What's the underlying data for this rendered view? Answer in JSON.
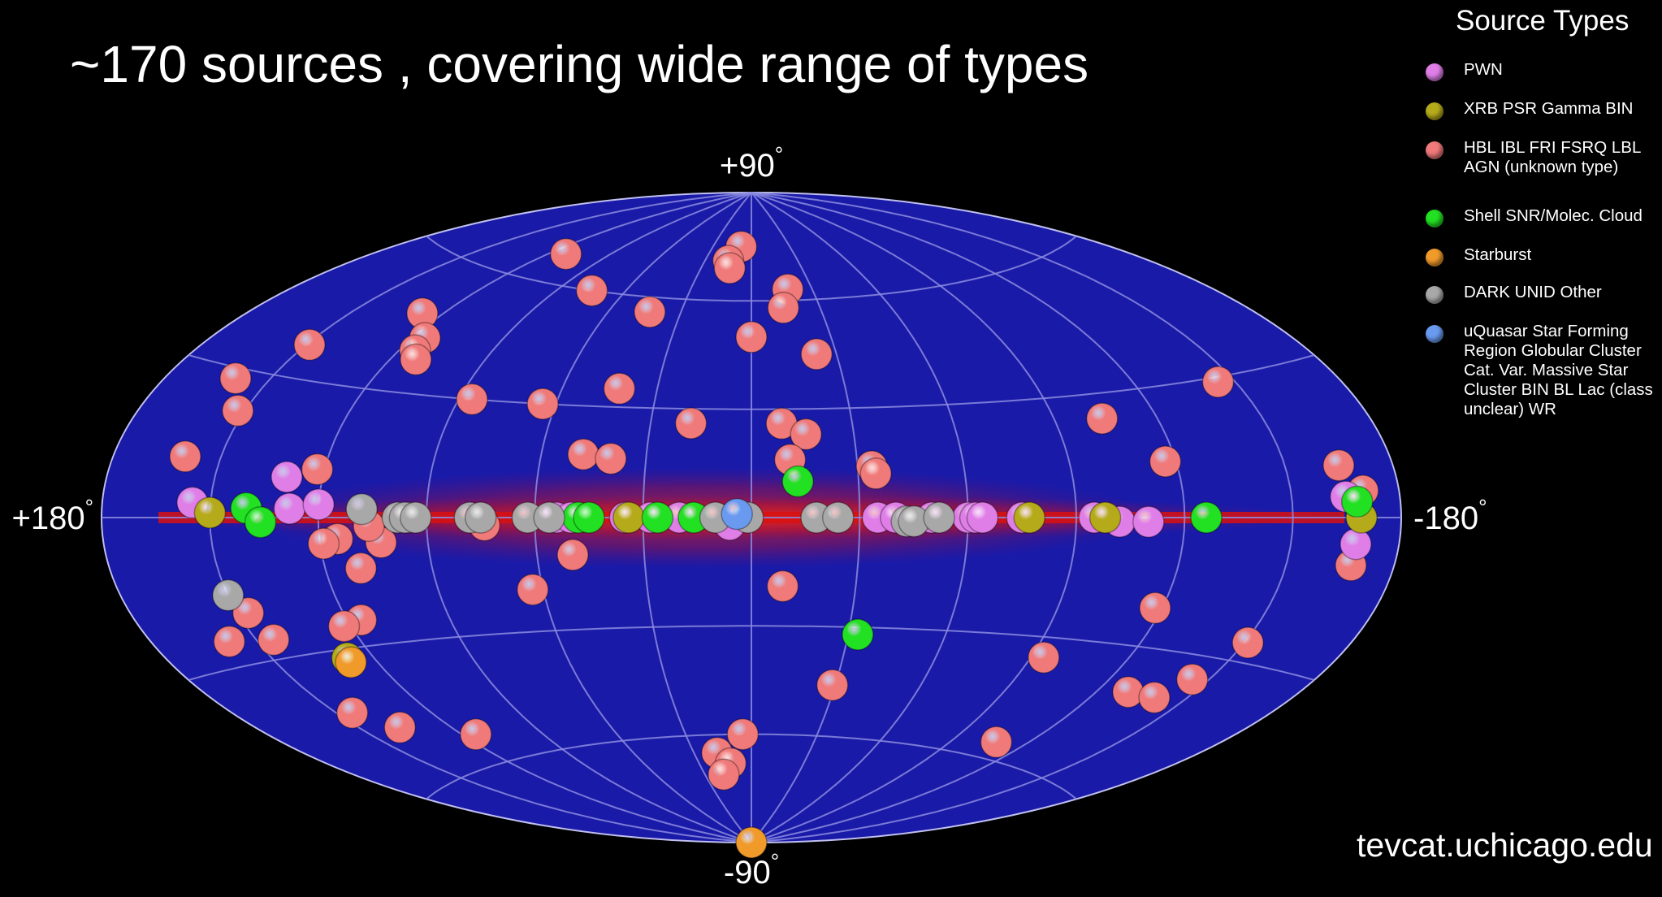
{
  "title": "~170 sources , covering wide range of types",
  "footer": "tevcat.uchicago.edu",
  "legend": {
    "title": "Source Types",
    "items": [
      {
        "label": "PWN",
        "color": "#e07ee8"
      },
      {
        "label": "XRB PSR Gamma BIN",
        "color": "#b5ab1a"
      },
      {
        "label": "HBL IBL FRI FSRQ LBL AGN (unknown type)",
        "color": "#f07a7a"
      },
      {
        "label": "Shell SNR/Molec. Cloud",
        "color": "#22e022"
      },
      {
        "label": "Starburst",
        "color": "#f09a2a"
      },
      {
        "label": "DARK UNID Other",
        "color": "#a8a8a8"
      },
      {
        "label": "uQuasar Star Forming Region Globular Cluster Cat. Var. Massive Star Cluster BIN BL Lac (class unclear) WR",
        "color": "#6a9af0"
      }
    ]
  },
  "chart_data": {
    "type": "scatter",
    "projection": "aitoff",
    "map_colors": {
      "background": "#1a1aa8",
      "galactic_plane": "#d81010",
      "grid": "#8c8ce0"
    },
    "axis_labels": {
      "top": "+90",
      "bottom": "-90",
      "left": "+180",
      "right": "-180",
      "degree_mark": "°"
    },
    "series": [
      {
        "color": "#f07a7a",
        "points": [
          [
            112,
            67
          ],
          [
            8,
            75
          ],
          [
            15,
            71
          ],
          [
            13,
            69
          ],
          [
            -18,
            63
          ],
          [
            -14,
            58
          ],
          [
            75,
            60
          ],
          [
            43,
            56
          ],
          [
            0,
            50
          ],
          [
            -23,
            45
          ],
          [
            127,
            48
          ],
          [
            116,
            43
          ],
          [
            115,
            40
          ],
          [
            112,
            38
          ],
          [
            149,
            37
          ],
          [
            160,
            28
          ],
          [
            152,
            22
          ],
          [
            42,
            35
          ],
          [
            86,
            30
          ],
          [
            64,
            30
          ],
          [
            18,
            26
          ],
          [
            -9,
            26
          ],
          [
            -16,
            23
          ],
          [
            -104,
            24
          ],
          [
            -145,
            29
          ],
          [
            48,
            17
          ],
          [
            40,
            16
          ],
          [
            -11,
            16
          ],
          [
            -34,
            14
          ],
          [
            -35,
            12
          ],
          [
            -117,
            13
          ],
          [
            160,
            12
          ],
          [
            122,
            11
          ],
          [
            -165,
            10
          ],
          [
            -170,
            5
          ],
          [
            74,
            -2
          ],
          [
            115,
            -5
          ],
          [
            119,
            -6
          ],
          [
            103,
            -6
          ],
          [
            50,
            -10
          ],
          [
            110,
            -12
          ],
          [
            116,
            -24
          ],
          [
            158,
            -25
          ],
          [
            147,
            -20
          ],
          [
            145,
            -26
          ],
          [
            122,
            -25
          ],
          [
            63,
            -19
          ],
          [
            -9,
            -19
          ],
          [
            -118,
            -21
          ],
          [
            -151,
            -26
          ],
          [
            -145,
            -35
          ],
          [
            -130,
            -40
          ],
          [
            145,
            -43
          ],
          [
            137,
            -48
          ],
          [
            -94,
            -35
          ],
          [
            115,
            -53
          ],
          [
            -108,
            -56
          ],
          [
            4,
            -60
          ],
          [
            18,
            -65
          ],
          [
            12,
            -68
          ],
          [
            18,
            -71
          ],
          [
            -29,
            -46
          ],
          [
            -140,
            -40
          ],
          [
            -168,
            -9
          ],
          [
            106,
            -2
          ]
        ]
      },
      {
        "color": "#e07ee8",
        "points": [
          [
            130,
            9
          ],
          [
            155,
            3
          ],
          [
            128,
            2
          ],
          [
            120,
            3
          ],
          [
            95,
            0
          ],
          [
            54,
            0
          ],
          [
            50,
            0
          ],
          [
            35,
            0
          ],
          [
            28,
            0
          ],
          [
            20,
            0
          ],
          [
            -35,
            0
          ],
          [
            -50,
            0
          ],
          [
            -40,
            0
          ],
          [
            -60,
            0
          ],
          [
            -62,
            0
          ],
          [
            -64,
            0
          ],
          [
            -95,
            0
          ],
          [
            -102,
            -1
          ],
          [
            -110,
            -1
          ],
          [
            -165,
            4
          ],
          [
            -168,
            -5
          ],
          [
            6,
            -2
          ],
          [
            -75,
            0
          ]
        ]
      },
      {
        "color": "#b5ab1a",
        "points": [
          [
            -169,
            0
          ],
          [
            -77,
            0
          ],
          [
            -98,
            0
          ],
          [
            34,
            0
          ],
          [
            150,
            1
          ],
          [
            128,
            -32
          ]
        ]
      },
      {
        "color": "#22e022",
        "points": [
          [
            140,
            2
          ],
          [
            136,
            -1
          ],
          [
            -33,
            -32
          ],
          [
            -13,
            10
          ],
          [
            -126,
            0
          ],
          [
            -168,
            3
          ],
          [
            48,
            0
          ],
          [
            45,
            0
          ],
          [
            26,
            0
          ],
          [
            16,
            0
          ]
        ]
      },
      {
        "color": "#f09a2a",
        "points": [
          [
            2,
            -90
          ],
          [
            128,
            -33
          ]
        ]
      },
      {
        "color": "#a8a8a8",
        "points": [
          [
            98,
            0
          ],
          [
            96,
            0
          ],
          [
            93,
            0
          ],
          [
            78,
            0
          ],
          [
            75,
            0
          ],
          [
            62,
            0
          ],
          [
            56,
            0
          ],
          [
            10,
            0
          ],
          [
            1,
            0
          ],
          [
            -18,
            0
          ],
          [
            -24,
            0
          ],
          [
            -43,
            -1
          ],
          [
            -45,
            -1
          ],
          [
            -52,
            0
          ],
          [
            150,
            -16
          ],
          [
            108,
            2
          ]
        ]
      },
      {
        "color": "#6a9af0",
        "points": [
          [
            4,
            1
          ]
        ]
      }
    ]
  }
}
